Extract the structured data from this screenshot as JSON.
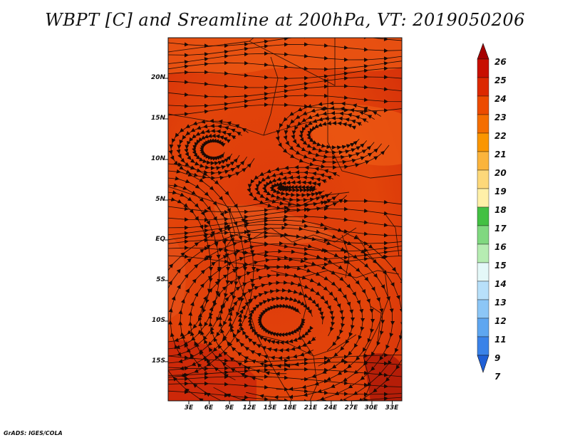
{
  "title": "WBPT [C] and Sreamline at 200hPa, VT: 2019050206",
  "credit": "GrADS: IGES/COLA",
  "map": {
    "lat_labels": [
      "20N",
      "15N",
      "10N",
      "5N",
      "EQ",
      "5S",
      "10S",
      "15S"
    ],
    "lon_labels": [
      "3E",
      "6E",
      "9E",
      "12E",
      "15E",
      "18E",
      "21E",
      "24E",
      "27E",
      "30E",
      "33E"
    ],
    "lon_range": [
      0,
      34.5
    ],
    "lat_range": [
      -20,
      24.5
    ]
  },
  "colorbar": {
    "labels": [
      "26",
      "25",
      "24",
      "23",
      "22",
      "21",
      "20",
      "19",
      "18",
      "17",
      "16",
      "15",
      "14",
      "13",
      "12",
      "11",
      "9",
      "7"
    ],
    "colors": [
      "#a50000",
      "#c80f00",
      "#dc2800",
      "#ec4b00",
      "#f46e00",
      "#fa9600",
      "#fbb43c",
      "#fdd87a",
      "#fff0a8",
      "#43c043",
      "#80d880",
      "#b6ecb2",
      "#e4f8f8",
      "#b8e0fa",
      "#8cc6f6",
      "#5ea6f0",
      "#3a82e8",
      "#1f5fd6"
    ]
  }
}
